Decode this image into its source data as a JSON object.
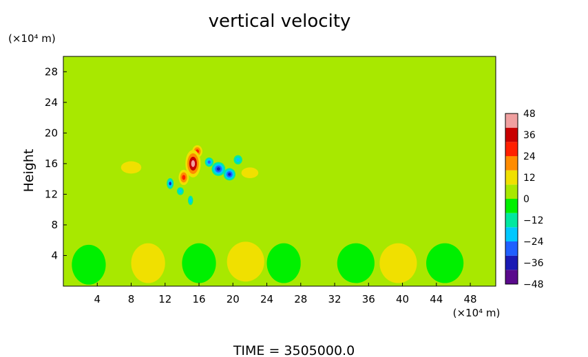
{
  "chart_data": {
    "type": "heatmap",
    "title": "vertical velocity",
    "ylabel": "Height",
    "y_unit": "(×10⁴ m)",
    "x_unit": "(×10⁴ m)",
    "footer": "TIME  =  3505000.0",
    "xlim": [
      0,
      51
    ],
    "ylim": [
      0,
      30
    ],
    "x_ticks": [
      4,
      8,
      12,
      16,
      20,
      24,
      28,
      32,
      36,
      40,
      44,
      48
    ],
    "y_ticks": [
      4,
      8,
      12,
      16,
      20,
      24,
      28
    ],
    "colorbar": {
      "levels": [
        48,
        36,
        24,
        12,
        0,
        -12,
        -24,
        -36,
        -48
      ],
      "range": [
        -48,
        48
      ],
      "colors": [
        "#5a0a8c",
        "#1a1ab4",
        "#2060ff",
        "#00c8ff",
        "#00e8a0",
        "#00f000",
        "#a8e800",
        "#f0e000",
        "#ff8c00",
        "#ff2000",
        "#c80000",
        "#f0a0a0"
      ]
    },
    "features": [
      {
        "x": 15.3,
        "y": 16.0,
        "value": 44,
        "sx": 0.9,
        "sy": 1.8
      },
      {
        "x": 14.2,
        "y": 14.2,
        "value": 30,
        "sx": 0.6,
        "sy": 1.0
      },
      {
        "x": 15.8,
        "y": 17.6,
        "value": 28,
        "sx": 0.6,
        "sy": 0.8
      },
      {
        "x": 18.3,
        "y": 15.3,
        "value": -40,
        "sx": 0.8,
        "sy": 0.9
      },
      {
        "x": 19.6,
        "y": 14.6,
        "value": -36,
        "sx": 0.7,
        "sy": 0.8
      },
      {
        "x": 12.6,
        "y": 13.4,
        "value": -34,
        "sx": 0.4,
        "sy": 0.7
      },
      {
        "x": 17.2,
        "y": 16.2,
        "value": -28,
        "sx": 0.5,
        "sy": 0.6
      },
      {
        "x": 15.0,
        "y": 11.2,
        "value": -22,
        "sx": 0.3,
        "sy": 0.6
      },
      {
        "x": 20.6,
        "y": 16.5,
        "value": -20,
        "sx": 0.5,
        "sy": 0.6
      },
      {
        "x": 13.8,
        "y": 12.4,
        "value": -18,
        "sx": 0.4,
        "sy": 0.5
      },
      {
        "x": 22.0,
        "y": 14.8,
        "value": 10,
        "sx": 1.0,
        "sy": 0.7
      },
      {
        "x": 8.0,
        "y": 15.5,
        "value": 8,
        "sx": 1.2,
        "sy": 0.8
      },
      {
        "x": 26.0,
        "y": 15.0,
        "value": 7,
        "sx": 1.5,
        "sy": 0.9
      },
      {
        "x": 3.0,
        "y": 2.8,
        "value": -8,
        "sx": 2.0,
        "sy": 2.6
      },
      {
        "x": 10.0,
        "y": 3.0,
        "value": 9,
        "sx": 2.0,
        "sy": 2.6
      },
      {
        "x": 16.0,
        "y": 3.0,
        "value": -7,
        "sx": 2.0,
        "sy": 2.6
      },
      {
        "x": 21.5,
        "y": 3.2,
        "value": 8,
        "sx": 2.2,
        "sy": 2.6
      },
      {
        "x": 34.5,
        "y": 3.0,
        "value": -8,
        "sx": 2.2,
        "sy": 2.6
      },
      {
        "x": 39.5,
        "y": 3.0,
        "value": 9,
        "sx": 2.2,
        "sy": 2.6
      },
      {
        "x": 45.0,
        "y": 3.0,
        "value": -8,
        "sx": 2.2,
        "sy": 2.6
      },
      {
        "x": 50.5,
        "y": 3.0,
        "value": 7,
        "sx": 1.8,
        "sy": 2.6
      },
      {
        "x": 26.0,
        "y": 3.0,
        "value": -4,
        "sx": 2.0,
        "sy": 2.6
      },
      {
        "x": 30.0,
        "y": 3.0,
        "value": 4,
        "sx": 2.0,
        "sy": 2.6
      }
    ]
  }
}
